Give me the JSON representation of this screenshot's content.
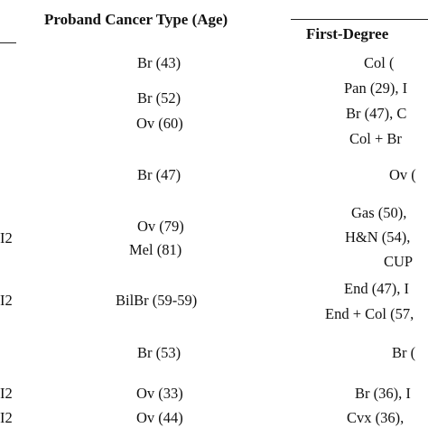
{
  "headers": {
    "proband": "Proband Cancer Type (Age)",
    "first_degree": "First-Degree"
  },
  "rows": [
    {
      "gene_edge": "",
      "proband": [
        "Br (43)"
      ],
      "first_degree": [
        "Col ("
      ]
    },
    {
      "gene_edge": "",
      "proband": [
        "Br (52)",
        "Ov (60)"
      ],
      "first_degree": [
        "Pan (29), I",
        "Br (47), C",
        "Col + Br"
      ]
    },
    {
      "gene_edge": "",
      "proband": [
        "Br (47)"
      ],
      "first_degree": [
        "Ov ("
      ]
    },
    {
      "gene_edge": "I2",
      "proband": [
        "Ov (79)",
        "Mel (81)"
      ],
      "first_degree": [
        "Gas (50),",
        "H&N (54),",
        "CUP"
      ]
    },
    {
      "gene_edge": "I2",
      "proband": [
        "BilBr (59-59)"
      ],
      "first_degree": [
        "End (47), I",
        "End + Col (57,"
      ]
    },
    {
      "gene_edge": "",
      "proband": [
        "Br (53)"
      ],
      "first_degree": [
        "Br ("
      ]
    },
    {
      "gene_edge": "I2",
      "proband": [
        "Ov (33)"
      ],
      "first_degree": [
        "Br (36), I"
      ]
    },
    {
      "gene_edge": "I2",
      "proband": [
        "Ov (44)"
      ],
      "first_degree": [
        "Cvx (36),"
      ]
    }
  ]
}
